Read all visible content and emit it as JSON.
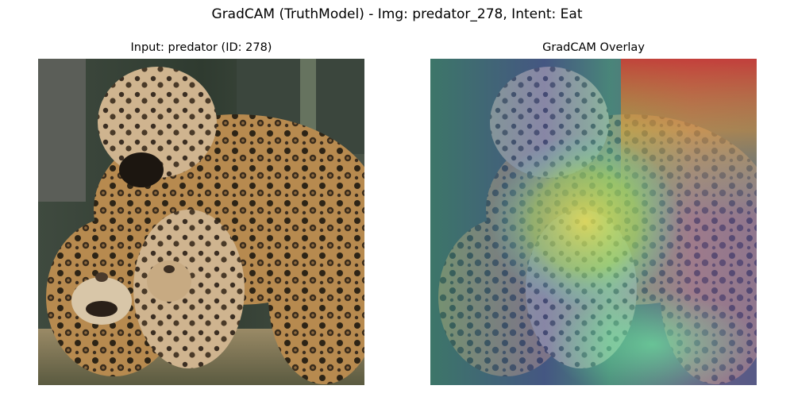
{
  "figure": {
    "suptitle": "GradCAM (TruthModel) - Img: predator_278, Intent: Eat"
  },
  "panels": [
    {
      "title": "Input: predator (ID: 278)"
    },
    {
      "title": "GradCAM Overlay"
    }
  ]
}
